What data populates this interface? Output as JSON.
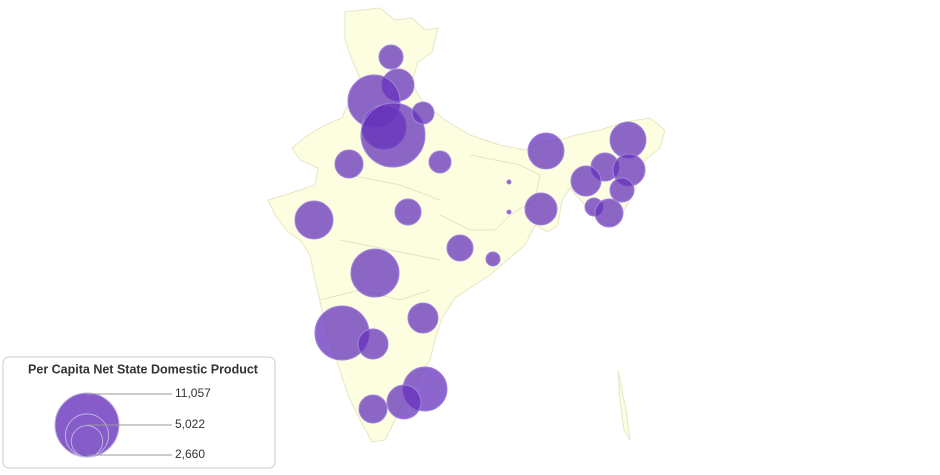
{
  "legend": {
    "title": "Per Capita Net State Domestic Product",
    "values": [
      {
        "value": 11057,
        "label": "11,057"
      },
      {
        "value": 5022,
        "label": "5,022"
      },
      {
        "value": 2660,
        "label": "2,660"
      }
    ]
  },
  "bubbles": {
    "color": "#6633bb",
    "values": [
      1555,
      2764,
      7300,
      5226,
      11057,
      1306,
      2116,
      1306,
      3498,
      3498,
      2116,
      2764,
      2429,
      1555,
      875,
      2116,
      43,
      43,
      2764,
      3898,
      1825,
      1825,
      529,
      6220,
      7871,
      2429,
      2429,
      5226,
      3107,
      2116
    ]
  }
}
